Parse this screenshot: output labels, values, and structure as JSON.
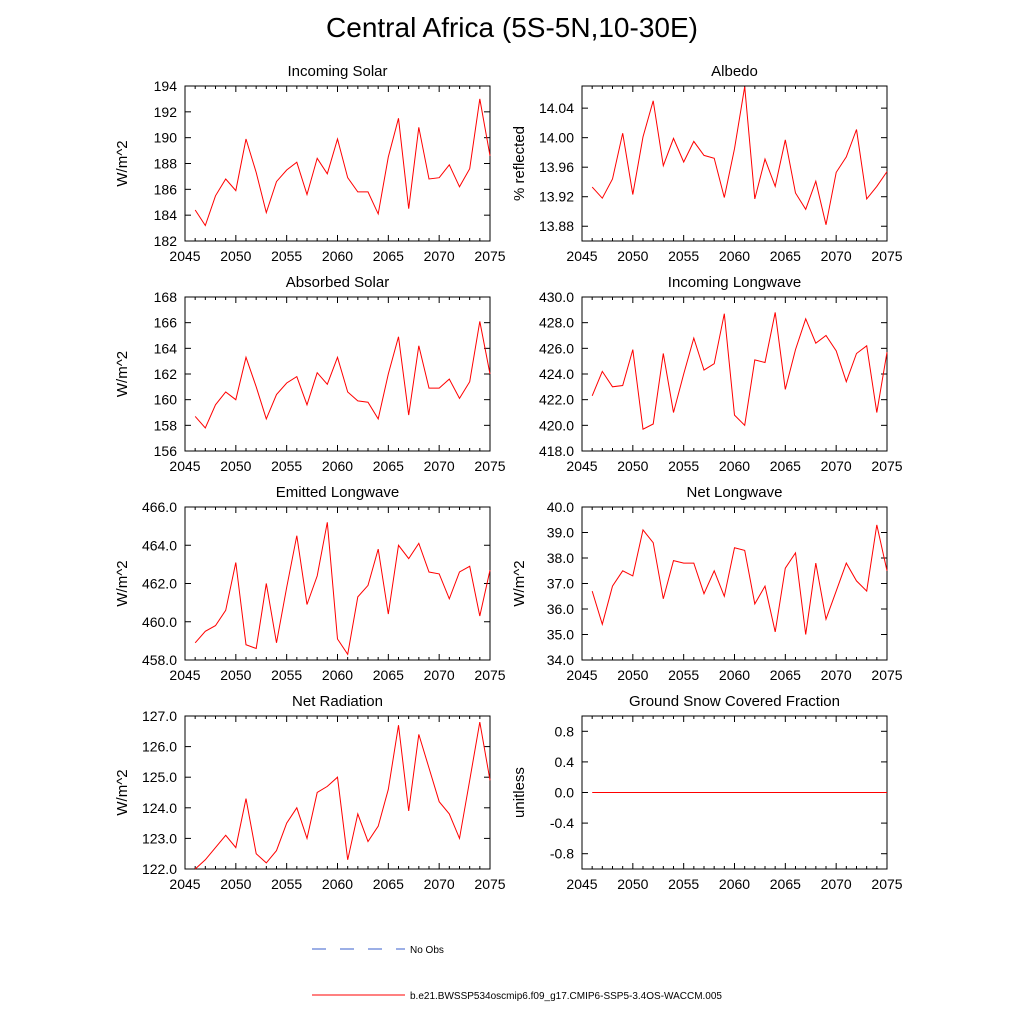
{
  "page": {
    "title": "Central Africa (5S-5N,10-30E)"
  },
  "colors": {
    "model": "#ff0000",
    "obs": "#3a5fcd",
    "axis": "#000000"
  },
  "chart_data": [
    {
      "type": "line",
      "title": "Incoming Solar",
      "ylabel": "W/m^2",
      "xlim": [
        2045,
        2075
      ],
      "ylim": [
        182,
        194
      ],
      "xticks": [
        "2045",
        "2050",
        "2055",
        "2060",
        "2065",
        "2070",
        "2075"
      ],
      "yticks": [
        "182",
        "184",
        "186",
        "188",
        "190",
        "192",
        "194"
      ],
      "x": [
        2046,
        2047,
        2048,
        2049,
        2050,
        2051,
        2052,
        2053,
        2054,
        2055,
        2056,
        2057,
        2058,
        2059,
        2060,
        2061,
        2062,
        2063,
        2064,
        2065,
        2066,
        2067,
        2068,
        2069,
        2070,
        2071,
        2072,
        2073,
        2074,
        2075
      ],
      "series": [
        {
          "values": [
            184.4,
            183.2,
            185.5,
            186.8,
            185.9,
            189.9,
            187.3,
            184.2,
            186.6,
            187.5,
            188.1,
            185.6,
            188.4,
            187.2,
            189.9,
            186.9,
            185.8,
            185.8,
            184.1,
            188.5,
            191.5,
            184.5,
            190.8,
            186.8,
            186.9,
            187.9,
            186.2,
            187.6,
            193.0,
            188.6
          ]
        }
      ]
    },
    {
      "type": "line",
      "title": "Albedo",
      "ylabel": "% reflected",
      "xlim": [
        2045,
        2075
      ],
      "ylim": [
        13.86,
        14.07
      ],
      "xticks": [
        "2045",
        "2050",
        "2055",
        "2060",
        "2065",
        "2070",
        "2075"
      ],
      "yticks": [
        "13.88",
        "13.92",
        "13.96",
        "14.00",
        "14.04"
      ],
      "x": [
        2046,
        2047,
        2048,
        2049,
        2050,
        2051,
        2052,
        2053,
        2054,
        2055,
        2056,
        2057,
        2058,
        2059,
        2060,
        2061,
        2062,
        2063,
        2064,
        2065,
        2066,
        2067,
        2068,
        2069,
        2070,
        2071,
        2072,
        2073,
        2074,
        2075
      ],
      "series": [
        {
          "values": [
            13.933,
            13.918,
            13.944,
            14.006,
            13.923,
            14.001,
            14.05,
            13.962,
            13.999,
            13.967,
            13.995,
            13.976,
            13.972,
            13.919,
            13.985,
            14.069,
            13.917,
            13.971,
            13.934,
            13.997,
            13.925,
            13.903,
            13.941,
            13.882,
            13.953,
            13.974,
            14.011,
            13.917,
            13.934,
            13.954
          ]
        }
      ]
    },
    {
      "type": "line",
      "title": "Absorbed Solar",
      "ylabel": "W/m^2",
      "xlim": [
        2045,
        2075
      ],
      "ylim": [
        156,
        168
      ],
      "xticks": [
        "2045",
        "2050",
        "2055",
        "2060",
        "2065",
        "2070",
        "2075"
      ],
      "yticks": [
        "156",
        "158",
        "160",
        "162",
        "164",
        "166",
        "168"
      ],
      "x": [
        2046,
        2047,
        2048,
        2049,
        2050,
        2051,
        2052,
        2053,
        2054,
        2055,
        2056,
        2057,
        2058,
        2059,
        2060,
        2061,
        2062,
        2063,
        2064,
        2065,
        2066,
        2067,
        2068,
        2069,
        2070,
        2071,
        2072,
        2073,
        2074,
        2075
      ],
      "series": [
        {
          "values": [
            158.7,
            157.8,
            159.6,
            160.6,
            160.0,
            163.3,
            161.0,
            158.5,
            160.4,
            161.3,
            161.8,
            159.6,
            162.1,
            161.2,
            163.3,
            160.6,
            159.9,
            159.8,
            158.5,
            162.0,
            164.9,
            158.8,
            164.2,
            160.9,
            160.9,
            161.6,
            160.1,
            161.4,
            166.1,
            162.0
          ]
        }
      ]
    },
    {
      "type": "line",
      "title": "Incoming Longwave",
      "ylabel": "",
      "xlim": [
        2045,
        2075
      ],
      "ylim": [
        418,
        430
      ],
      "xticks": [
        "2045",
        "2050",
        "2055",
        "2060",
        "2065",
        "2070",
        "2075"
      ],
      "yticks": [
        "418.0",
        "420.0",
        "422.0",
        "424.0",
        "426.0",
        "428.0",
        "430.0"
      ],
      "x": [
        2046,
        2047,
        2048,
        2049,
        2050,
        2051,
        2052,
        2053,
        2054,
        2055,
        2056,
        2057,
        2058,
        2059,
        2060,
        2061,
        2062,
        2063,
        2064,
        2065,
        2066,
        2067,
        2068,
        2069,
        2070,
        2071,
        2072,
        2073,
        2074,
        2075
      ],
      "series": [
        {
          "values": [
            422.3,
            424.2,
            423.0,
            423.1,
            425.9,
            419.7,
            420.1,
            425.6,
            421.0,
            424.0,
            426.8,
            424.3,
            424.8,
            428.7,
            420.8,
            420.0,
            425.1,
            424.9,
            428.8,
            422.8,
            425.9,
            428.3,
            426.4,
            427.0,
            425.8,
            423.4,
            425.6,
            426.2,
            421.0,
            425.7
          ]
        }
      ]
    },
    {
      "type": "line",
      "title": "Emitted Longwave",
      "ylabel": "W/m^2",
      "xlim": [
        2045,
        2075
      ],
      "ylim": [
        458,
        466
      ],
      "xticks": [
        "2045",
        "2050",
        "2055",
        "2060",
        "2065",
        "2070",
        "2075"
      ],
      "yticks": [
        "458.0",
        "460.0",
        "462.0",
        "464.0",
        "466.0"
      ],
      "x": [
        2046,
        2047,
        2048,
        2049,
        2050,
        2051,
        2052,
        2053,
        2054,
        2055,
        2056,
        2057,
        2058,
        2059,
        2060,
        2061,
        2062,
        2063,
        2064,
        2065,
        2066,
        2067,
        2068,
        2069,
        2070,
        2071,
        2072,
        2073,
        2074,
        2075
      ],
      "series": [
        {
          "values": [
            458.9,
            459.5,
            459.8,
            460.6,
            463.1,
            458.8,
            458.6,
            462.0,
            458.9,
            461.8,
            464.5,
            460.9,
            462.4,
            465.2,
            459.1,
            458.3,
            461.3,
            461.9,
            463.8,
            460.4,
            464.0,
            463.3,
            464.1,
            462.6,
            462.5,
            461.2,
            462.6,
            462.9,
            460.3,
            462.7
          ]
        }
      ]
    },
    {
      "type": "line",
      "title": "Net Longwave",
      "ylabel": "W/m^2",
      "xlim": [
        2045,
        2075
      ],
      "ylim": [
        34,
        40
      ],
      "xticks": [
        "2045",
        "2050",
        "2055",
        "2060",
        "2065",
        "2070",
        "2075"
      ],
      "yticks": [
        "34.0",
        "35.0",
        "36.0",
        "37.0",
        "38.0",
        "39.0",
        "40.0"
      ],
      "x": [
        2046,
        2047,
        2048,
        2049,
        2050,
        2051,
        2052,
        2053,
        2054,
        2055,
        2056,
        2057,
        2058,
        2059,
        2060,
        2061,
        2062,
        2063,
        2064,
        2065,
        2066,
        2067,
        2068,
        2069,
        2070,
        2071,
        2072,
        2073,
        2074,
        2075
      ],
      "series": [
        {
          "values": [
            36.7,
            35.4,
            36.9,
            37.5,
            37.3,
            39.1,
            38.6,
            36.4,
            37.9,
            37.8,
            37.8,
            36.6,
            37.5,
            36.5,
            38.4,
            38.3,
            36.2,
            36.9,
            35.1,
            37.6,
            38.2,
            35.0,
            37.8,
            35.6,
            36.7,
            37.8,
            37.1,
            36.7,
            39.3,
            37.5
          ]
        }
      ]
    },
    {
      "type": "line",
      "title": "Net Radiation",
      "ylabel": "W/m^2",
      "xlim": [
        2045,
        2075
      ],
      "ylim": [
        122,
        127
      ],
      "xticks": [
        "2045",
        "2050",
        "2055",
        "2060",
        "2065",
        "2070",
        "2075"
      ],
      "yticks": [
        "122.0",
        "123.0",
        "124.0",
        "125.0",
        "126.0",
        "127.0"
      ],
      "x": [
        2046,
        2047,
        2048,
        2049,
        2050,
        2051,
        2052,
        2053,
        2054,
        2055,
        2056,
        2057,
        2058,
        2059,
        2060,
        2061,
        2062,
        2063,
        2064,
        2065,
        2066,
        2067,
        2068,
        2069,
        2070,
        2071,
        2072,
        2073,
        2074,
        2075
      ],
      "series": [
        {
          "values": [
            122.0,
            122.3,
            122.7,
            123.1,
            122.7,
            124.3,
            122.5,
            122.2,
            122.6,
            123.5,
            124.0,
            123.0,
            124.5,
            124.7,
            125.0,
            122.3,
            123.8,
            122.9,
            123.4,
            124.6,
            126.7,
            123.9,
            126.4,
            125.3,
            124.2,
            123.8,
            123.0,
            124.9,
            126.8,
            124.9
          ]
        }
      ]
    },
    {
      "type": "line",
      "title": "Ground Snow Covered Fraction",
      "ylabel": "unitless",
      "xlim": [
        2045,
        2075
      ],
      "ylim": [
        -1.0,
        1.0
      ],
      "xticks": [
        "2045",
        "2050",
        "2055",
        "2060",
        "2065",
        "2070",
        "2075"
      ],
      "yticks": [
        "-0.8",
        "-0.4",
        "0.0",
        "0.4",
        "0.8"
      ],
      "x": [
        2046,
        2075
      ],
      "series": [
        {
          "values": [
            0.0,
            0.0
          ]
        }
      ]
    }
  ],
  "legend": [
    {
      "label": "No Obs",
      "style": "dashed",
      "color": "#3a5fcd"
    },
    {
      "label": "b.e21.BWSSP534oscmip6.f09_g17.CMIP6-SSP5-3.4OS-WACCM.005",
      "style": "solid",
      "color": "#ff0000"
    }
  ]
}
